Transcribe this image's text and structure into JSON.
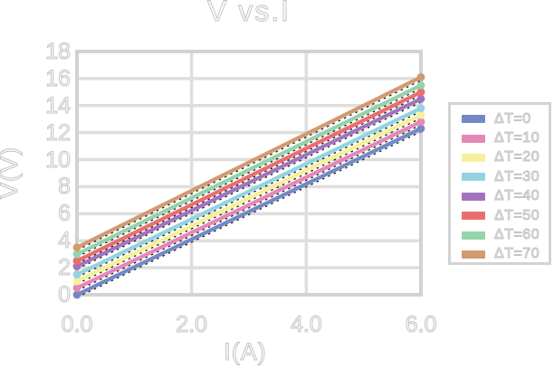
{
  "chart_data": {
    "type": "line",
    "title": "V vs.I",
    "xlabel": "I(A)",
    "ylabel": "V(V)",
    "xlim": [
      0,
      6
    ],
    "ylim": [
      0,
      18
    ],
    "x_tick_labels": [
      "0.0",
      "2.0",
      "4.0",
      "6.0"
    ],
    "x_tick_values": [
      0,
      2,
      4,
      6
    ],
    "y_tick_values": [
      0,
      2,
      4,
      6,
      8,
      10,
      12,
      14,
      16,
      18
    ],
    "grid": true,
    "legend_position": "center right, outside axes",
    "x": [
      0,
      6
    ],
    "series": [
      {
        "name": "ΔT=0",
        "color": "#7389c6",
        "values": [
          0.0,
          12.3
        ]
      },
      {
        "name": "ΔT=10",
        "color": "#e687b7",
        "values": [
          0.5,
          12.8
        ]
      },
      {
        "name": "ΔT=20",
        "color": "#f6f09a",
        "values": [
          1.0,
          13.3
        ]
      },
      {
        "name": "ΔT=30",
        "color": "#93d3e0",
        "values": [
          1.5,
          13.8
        ]
      },
      {
        "name": "ΔT=40",
        "color": "#a273bd",
        "values": [
          2.1,
          14.5
        ]
      },
      {
        "name": "ΔT=50",
        "color": "#ea6e6e",
        "values": [
          2.5,
          15.0
        ]
      },
      {
        "name": "ΔT=60",
        "color": "#95d3a9",
        "values": [
          3.0,
          15.5
        ]
      },
      {
        "name": "ΔT=70",
        "color": "#d29a70",
        "values": [
          3.5,
          16.1
        ]
      }
    ],
    "has_fit_lines": true,
    "fit_line_color": "#1a1a1a",
    "fit_line_style": "dotted",
    "marker": "circle at each data point",
    "grid_color": "#dedede",
    "frame_color": "#d2d2d2",
    "text_color_outline": "#c3c3c3"
  }
}
